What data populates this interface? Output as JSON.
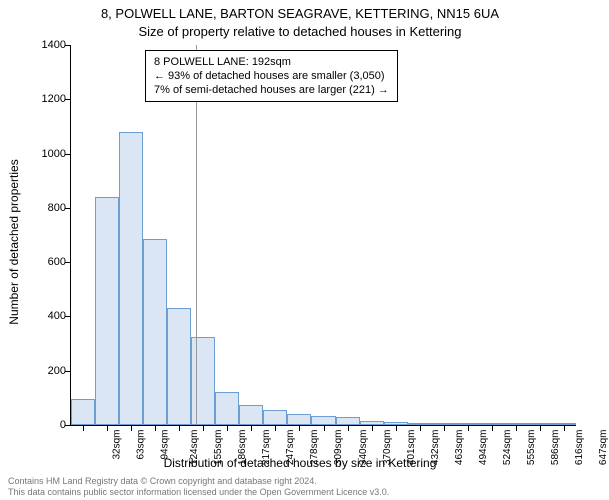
{
  "header": {
    "title_main": "8, POLWELL LANE, BARTON SEAGRAVE, KETTERING, NN15 6UA",
    "title_sub": "Size of property relative to detached houses in Kettering"
  },
  "y_axis": {
    "label": "Number of detached properties",
    "min": 0,
    "max": 1400,
    "tick_step": 200,
    "ticks": [
      0,
      200,
      400,
      600,
      800,
      1000,
      1200,
      1400
    ],
    "label_fontsize": 12,
    "tick_fontsize": 11
  },
  "x_axis": {
    "label": "Distribution of detached houses by size in Kettering",
    "tick_labels": [
      "32sqm",
      "63sqm",
      "94sqm",
      "124sqm",
      "155sqm",
      "186sqm",
      "217sqm",
      "247sqm",
      "278sqm",
      "309sqm",
      "340sqm",
      "370sqm",
      "401sqm",
      "432sqm",
      "463sqm",
      "494sqm",
      "524sqm",
      "555sqm",
      "586sqm",
      "616sqm",
      "647sqm"
    ],
    "label_fontsize": 12,
    "tick_fontsize": 10
  },
  "chart": {
    "type": "histogram",
    "bar_fill": "#dbe6f4",
    "bar_stroke": "#6e9dd2",
    "bar_stroke_width": 1,
    "background_color": "#ffffff",
    "axis_color": "#000000",
    "reference_line_color": "#999999",
    "reference_x_index": 5.2,
    "values": [
      95,
      840,
      1080,
      685,
      430,
      325,
      120,
      75,
      55,
      40,
      35,
      30,
      15,
      12,
      8,
      7,
      5,
      4,
      3,
      2,
      2
    ]
  },
  "annotation": {
    "line1": "8 POLWELL LANE: 192sqm",
    "line2": "← 93% of detached houses are smaller (3,050)",
    "line3": "7% of semi-detached houses are larger (221) →",
    "box_border": "#000000",
    "box_bg": "#ffffff",
    "fontsize": 11
  },
  "footer": {
    "line1": "Contains HM Land Registry data © Crown copyright and database right 2024.",
    "line2": "This data contains public sector information licensed under the Open Government Licence v3.0.",
    "color": "#777777",
    "fontsize": 9
  }
}
